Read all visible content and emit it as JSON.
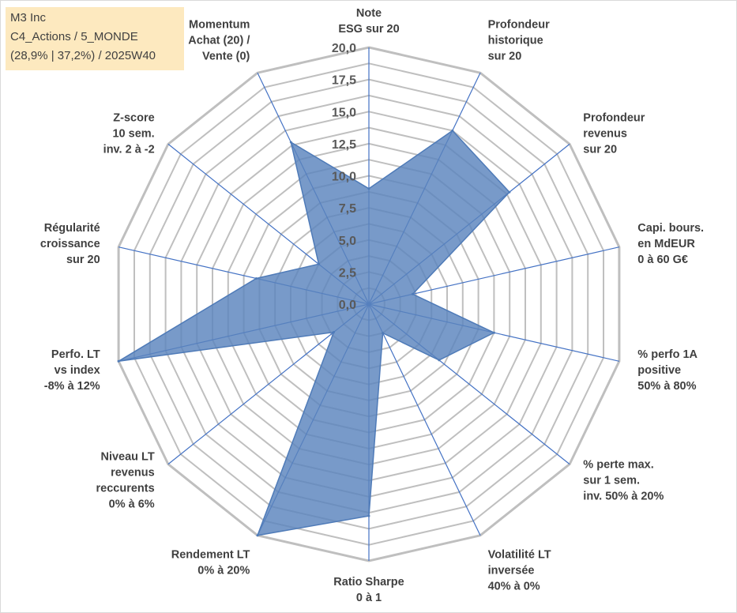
{
  "info": {
    "line1": "M3 Inc",
    "line2": "C4_Actions / 5_MONDE",
    "line3": "(28,9% | 37,2%) / 2025W40"
  },
  "chart_data": {
    "type": "radar",
    "title": "M3 Inc",
    "r_min": 0,
    "r_max": 20,
    "r_ticks": [
      "0,0",
      "2,5",
      "5,0",
      "7,5",
      "10,0",
      "12,5",
      "15,0",
      "17,5",
      "20,0"
    ],
    "axes": [
      {
        "label": [
          "Note",
          "ESG sur 20"
        ],
        "value": 9.0
      },
      {
        "label": [
          "Profondeur",
          "historique",
          "sur 20"
        ],
        "value": 15.0
      },
      {
        "label": [
          "Profondeur",
          "revenus",
          "sur 20"
        ],
        "value": 14.0
      },
      {
        "label": [
          "Capi. bours.",
          "en MdEUR",
          "0 à 60 G€"
        ],
        "value": 3.5
      },
      {
        "label": [
          "% perfo 1A",
          "positive",
          "50% à 80%"
        ],
        "value": 10.0
      },
      {
        "label": [
          "% perte max.",
          "sur 1 sem.",
          "inv. 50% à 20%"
        ],
        "value": 7.0
      },
      {
        "label": [
          "Volatilité LT",
          "inversée",
          "40% à 0%"
        ],
        "value": 2.5
      },
      {
        "label": [
          "Ratio Sharpe",
          "0 à 1"
        ],
        "value": 16.5
      },
      {
        "label": [
          "Rendement LT",
          "0% à 20%"
        ],
        "value": 20.0
      },
      {
        "label": [
          "Niveau LT",
          "revenus",
          "reccurents",
          "0% à 6%"
        ],
        "value": 3.5
      },
      {
        "label": [
          "Perfo. LT",
          "vs index",
          "-8% à 12%"
        ],
        "value": 20.0
      },
      {
        "label": [
          "Régularité",
          "croissance",
          "sur 20"
        ],
        "value": 9.0
      },
      {
        "label": [
          "Z-score",
          "10 sem.",
          "inv. 2 à -2"
        ],
        "value": 5.0
      },
      {
        "label": [
          "Momentum",
          "Achat (20) /",
          "Vente (0)"
        ],
        "value": 14.0
      }
    ],
    "series": [
      {
        "name": "M3 Inc",
        "color": "#4f7bb8",
        "fill": "#5a84bd"
      }
    ],
    "colors": {
      "grid": "#bfbfbf",
      "spoke": "#4472c4",
      "text": "#404040"
    }
  }
}
